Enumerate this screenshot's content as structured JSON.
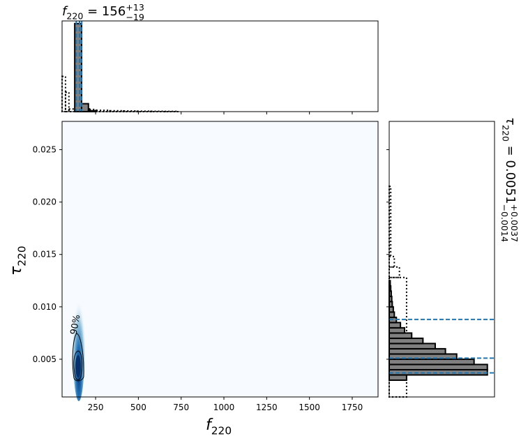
{
  "chart_data": [
    {
      "type": "histogram",
      "orientation": "vertical",
      "title": {
        "symbol": "f",
        "subscript": "220",
        "equals": " = 156",
        "upper": "+13",
        "lower": "−19"
      },
      "xlim": [
        54,
        1901
      ],
      "ylim": [
        0,
        1.03
      ],
      "series": [
        {
          "linestyle": "dotted",
          "color": "#000000",
          "fill": "none",
          "bins": [
            54,
            74,
            94,
            134,
            174,
            214,
            254,
            334,
            414,
            494,
            574,
            654,
            734
          ],
          "values": [
            0.4,
            0.22,
            0.03,
            0.06,
            0.04,
            0.025,
            0.015,
            0.01,
            0.008,
            0.005,
            0.004,
            0.003
          ]
        },
        {
          "linestyle": "solid",
          "color": "#000000",
          "fill": "#808080",
          "bins": [
            128,
            168,
            208,
            248
          ],
          "values": [
            1.0,
            0.09,
            0.01
          ]
        }
      ],
      "quantiles": [
        137,
        156,
        169
      ],
      "quantile_color": "#1f77b4"
    },
    {
      "type": "density",
      "xlabel": {
        "symbol": "f",
        "subscript": "220"
      },
      "ylabel": {
        "symbol": "τ",
        "subscript": "220"
      },
      "xlim": [
        54,
        1901
      ],
      "ylim": [
        0.0014,
        0.0277
      ],
      "xticks": [
        250,
        500,
        750,
        1000,
        1250,
        1500,
        1750
      ],
      "yticks": [
        0.005,
        {
          "value": 0.01,
          "label": "0.010"
        },
        0.015,
        {
          "value": 0.02,
          "label": "0.020"
        },
        0.025
      ],
      "contour_label": "90%"
    },
    {
      "type": "histogram",
      "orientation": "horizontal",
      "title": {
        "symbol": "τ",
        "subscript": "220",
        "equals": " = 0.0051",
        "upper": "+0.0037",
        "lower": "−0.0014"
      },
      "xlim": [
        0,
        1.03
      ],
      "ylim": [
        0.0014,
        0.0277
      ],
      "series": [
        {
          "linestyle": "dotted",
          "color": "#000000",
          "fill": "none",
          "bins": [
            0.0014,
            0.0128,
            0.0138,
            0.0148,
            0.0215
          ],
          "values": [
            0.17,
            0.1,
            0.05,
            0.015
          ]
        },
        {
          "linestyle": "solid",
          "color": "#000000",
          "fill": "#808080",
          "bins": [
            0.003,
            0.0035,
            0.004,
            0.0045,
            0.005,
            0.0055,
            0.006,
            0.0065,
            0.007,
            0.0075,
            0.008,
            0.0085,
            0.009,
            0.0095,
            0.01,
            0.0105,
            0.011,
            0.0115,
            0.012,
            0.0125
          ],
          "values": [
            0.17,
            0.96,
            0.96,
            0.83,
            0.66,
            0.55,
            0.45,
            0.33,
            0.22,
            0.15,
            0.11,
            0.07,
            0.05,
            0.04,
            0.03,
            0.025,
            0.02,
            0.015,
            0.01
          ]
        }
      ],
      "quantiles": [
        0.0037,
        0.0051,
        0.0088
      ],
      "quantile_color": "#1f77b4"
    }
  ]
}
